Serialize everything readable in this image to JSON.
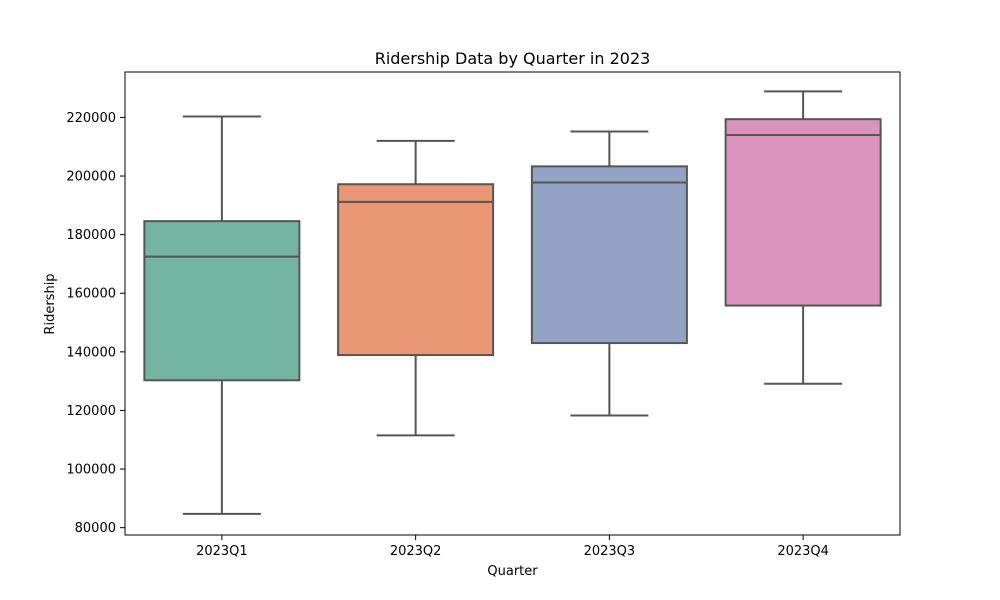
{
  "chart_data": {
    "type": "box",
    "title": "Ridership Data by Quarter in 2023",
    "xlabel": "Quarter",
    "ylabel": "Ridership",
    "categories": [
      "2023Q1",
      "2023Q2",
      "2023Q3",
      "2023Q4"
    ],
    "ylim": [
      77500,
      235500
    ],
    "yticks": [
      80000,
      100000,
      120000,
      140000,
      160000,
      180000,
      200000,
      220000
    ],
    "ytick_labels": [
      "80000",
      "100000",
      "120000",
      "140000",
      "160000",
      "180000",
      "200000",
      "220000"
    ],
    "series": [
      {
        "name": "2023Q1",
        "min": 84700,
        "q1": 130300,
        "median": 172500,
        "q3": 184600,
        "max": 220300,
        "color": "#73b5a1"
      },
      {
        "name": "2023Q2",
        "min": 111500,
        "q1": 138900,
        "median": 191200,
        "q3": 197200,
        "max": 212000,
        "color": "#e99774"
      },
      {
        "name": "2023Q3",
        "min": 118300,
        "q1": 143000,
        "median": 197800,
        "q3": 203300,
        "max": 215200,
        "color": "#93a3c3"
      },
      {
        "name": "2023Q4",
        "min": 129100,
        "q1": 155800,
        "median": 214000,
        "q3": 219400,
        "max": 228900,
        "color": "#da93bd"
      }
    ],
    "grid": false,
    "legend": "none"
  },
  "style": {
    "line_color": "#555555",
    "axis_color": "#000000",
    "background": "#ffffff"
  }
}
